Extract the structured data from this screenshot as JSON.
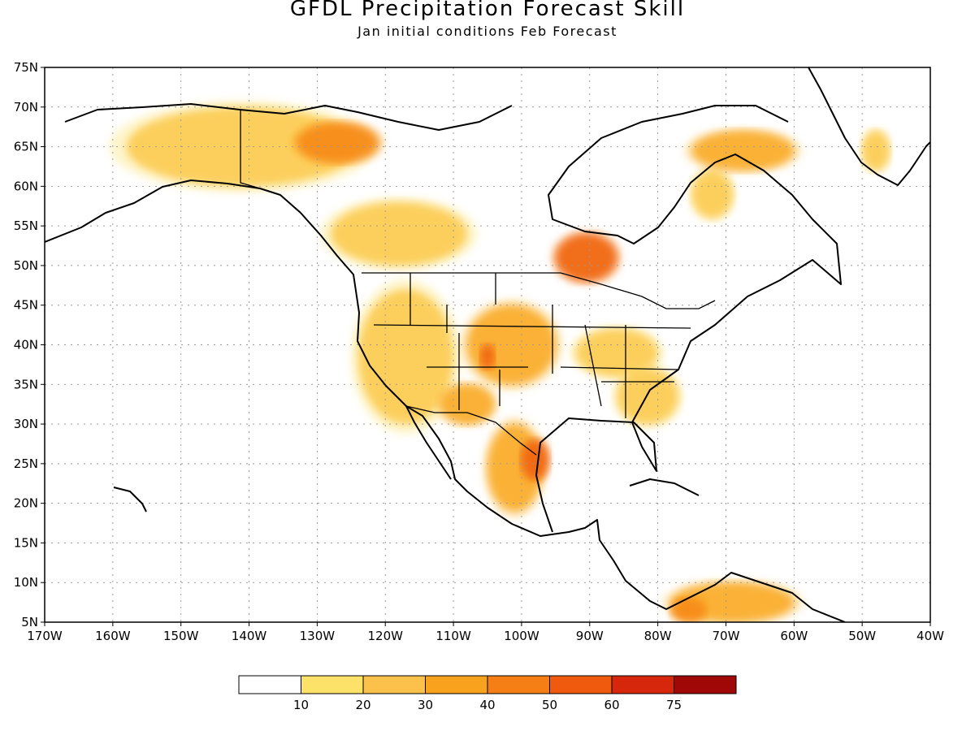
{
  "title": "GFDL Precipitation Forecast Skill",
  "subtitle": "Jan initial conditions  Feb Forecast",
  "chart_data": {
    "type": "heatmap",
    "map": "North America",
    "lat_range": [
      5,
      75
    ],
    "lon_range": [
      -170,
      -40
    ],
    "lat_ticks": [
      "5N",
      "10N",
      "15N",
      "20N",
      "25N",
      "30N",
      "35N",
      "40N",
      "45N",
      "50N",
      "55N",
      "60N",
      "65N",
      "70N",
      "75N"
    ],
    "lon_ticks": [
      "170W",
      "160W",
      "150W",
      "140W",
      "130W",
      "120W",
      "110W",
      "100W",
      "90W",
      "80W",
      "70W",
      "60W",
      "50W",
      "40W"
    ],
    "grid": true,
    "colorbar": {
      "position": "bottom",
      "labels": [
        "10",
        "20",
        "30",
        "40",
        "50",
        "60",
        "75"
      ],
      "colors": [
        "#ffffff",
        "#fde26a",
        "#fcc14a",
        "#f9a21e",
        "#f57f14",
        "#ef5a0e",
        "#d6260c",
        "#a00808"
      ]
    },
    "regions": [
      {
        "name": "Alaska / Yukon",
        "lon": [
          -158,
          -124
        ],
        "lat": [
          60,
          70
        ],
        "level": 2
      },
      {
        "name": "Yukon / NWT",
        "lon": [
          -133,
          -121
        ],
        "lat": [
          63,
          68
        ],
        "level": 4
      },
      {
        "name": "Hudson Bay west",
        "lon": [
          -95,
          -86
        ],
        "lat": [
          48,
          54
        ],
        "level": 5
      },
      {
        "name": "Labrador",
        "lon": [
          -75,
          -69
        ],
        "lat": [
          56,
          62
        ],
        "level": 2
      },
      {
        "name": "Baffin",
        "lon": [
          -75,
          -60
        ],
        "lat": [
          62,
          67
        ],
        "level": 3
      },
      {
        "name": "Greenland",
        "lon": [
          -50,
          -46
        ],
        "lat": [
          62,
          67
        ],
        "level": 2
      },
      {
        "name": "Western Canada",
        "lon": [
          -128,
          -108
        ],
        "lat": [
          50,
          58
        ],
        "level": 2
      },
      {
        "name": "Western US",
        "lon": [
          -124,
          -110
        ],
        "lat": [
          30,
          47
        ],
        "level": 2
      },
      {
        "name": "Colorado / Kansas",
        "lon": [
          -108,
          -95
        ],
        "lat": [
          35,
          45
        ],
        "level": 3
      },
      {
        "name": "Southern Rockies",
        "lon": [
          -106,
          -104
        ],
        "lat": [
          37,
          40
        ],
        "level": 5
      },
      {
        "name": "Arizona / NM",
        "lon": [
          -112,
          -104
        ],
        "lat": [
          30,
          35
        ],
        "level": 3
      },
      {
        "name": "Ohio Valley",
        "lon": [
          -92,
          -80
        ],
        "lat": [
          36,
          42
        ],
        "level": 2
      },
      {
        "name": "Southeast",
        "lon": [
          -86,
          -77
        ],
        "lat": [
          30,
          37
        ],
        "level": 2
      },
      {
        "name": "Texas / NE Mexico",
        "lon": [
          -105,
          -97
        ],
        "lat": [
          19,
          30
        ],
        "level": 3
      },
      {
        "name": "South Texas",
        "lon": [
          -100,
          -96
        ],
        "lat": [
          23,
          28
        ],
        "level": 5
      },
      {
        "name": "Northern South America",
        "lon": [
          -78,
          -60
        ],
        "lat": [
          5,
          10
        ],
        "level": 3
      },
      {
        "name": "Colombia",
        "lon": [
          -78,
          -73
        ],
        "lat": [
          5,
          8
        ],
        "level": 4
      }
    ]
  }
}
